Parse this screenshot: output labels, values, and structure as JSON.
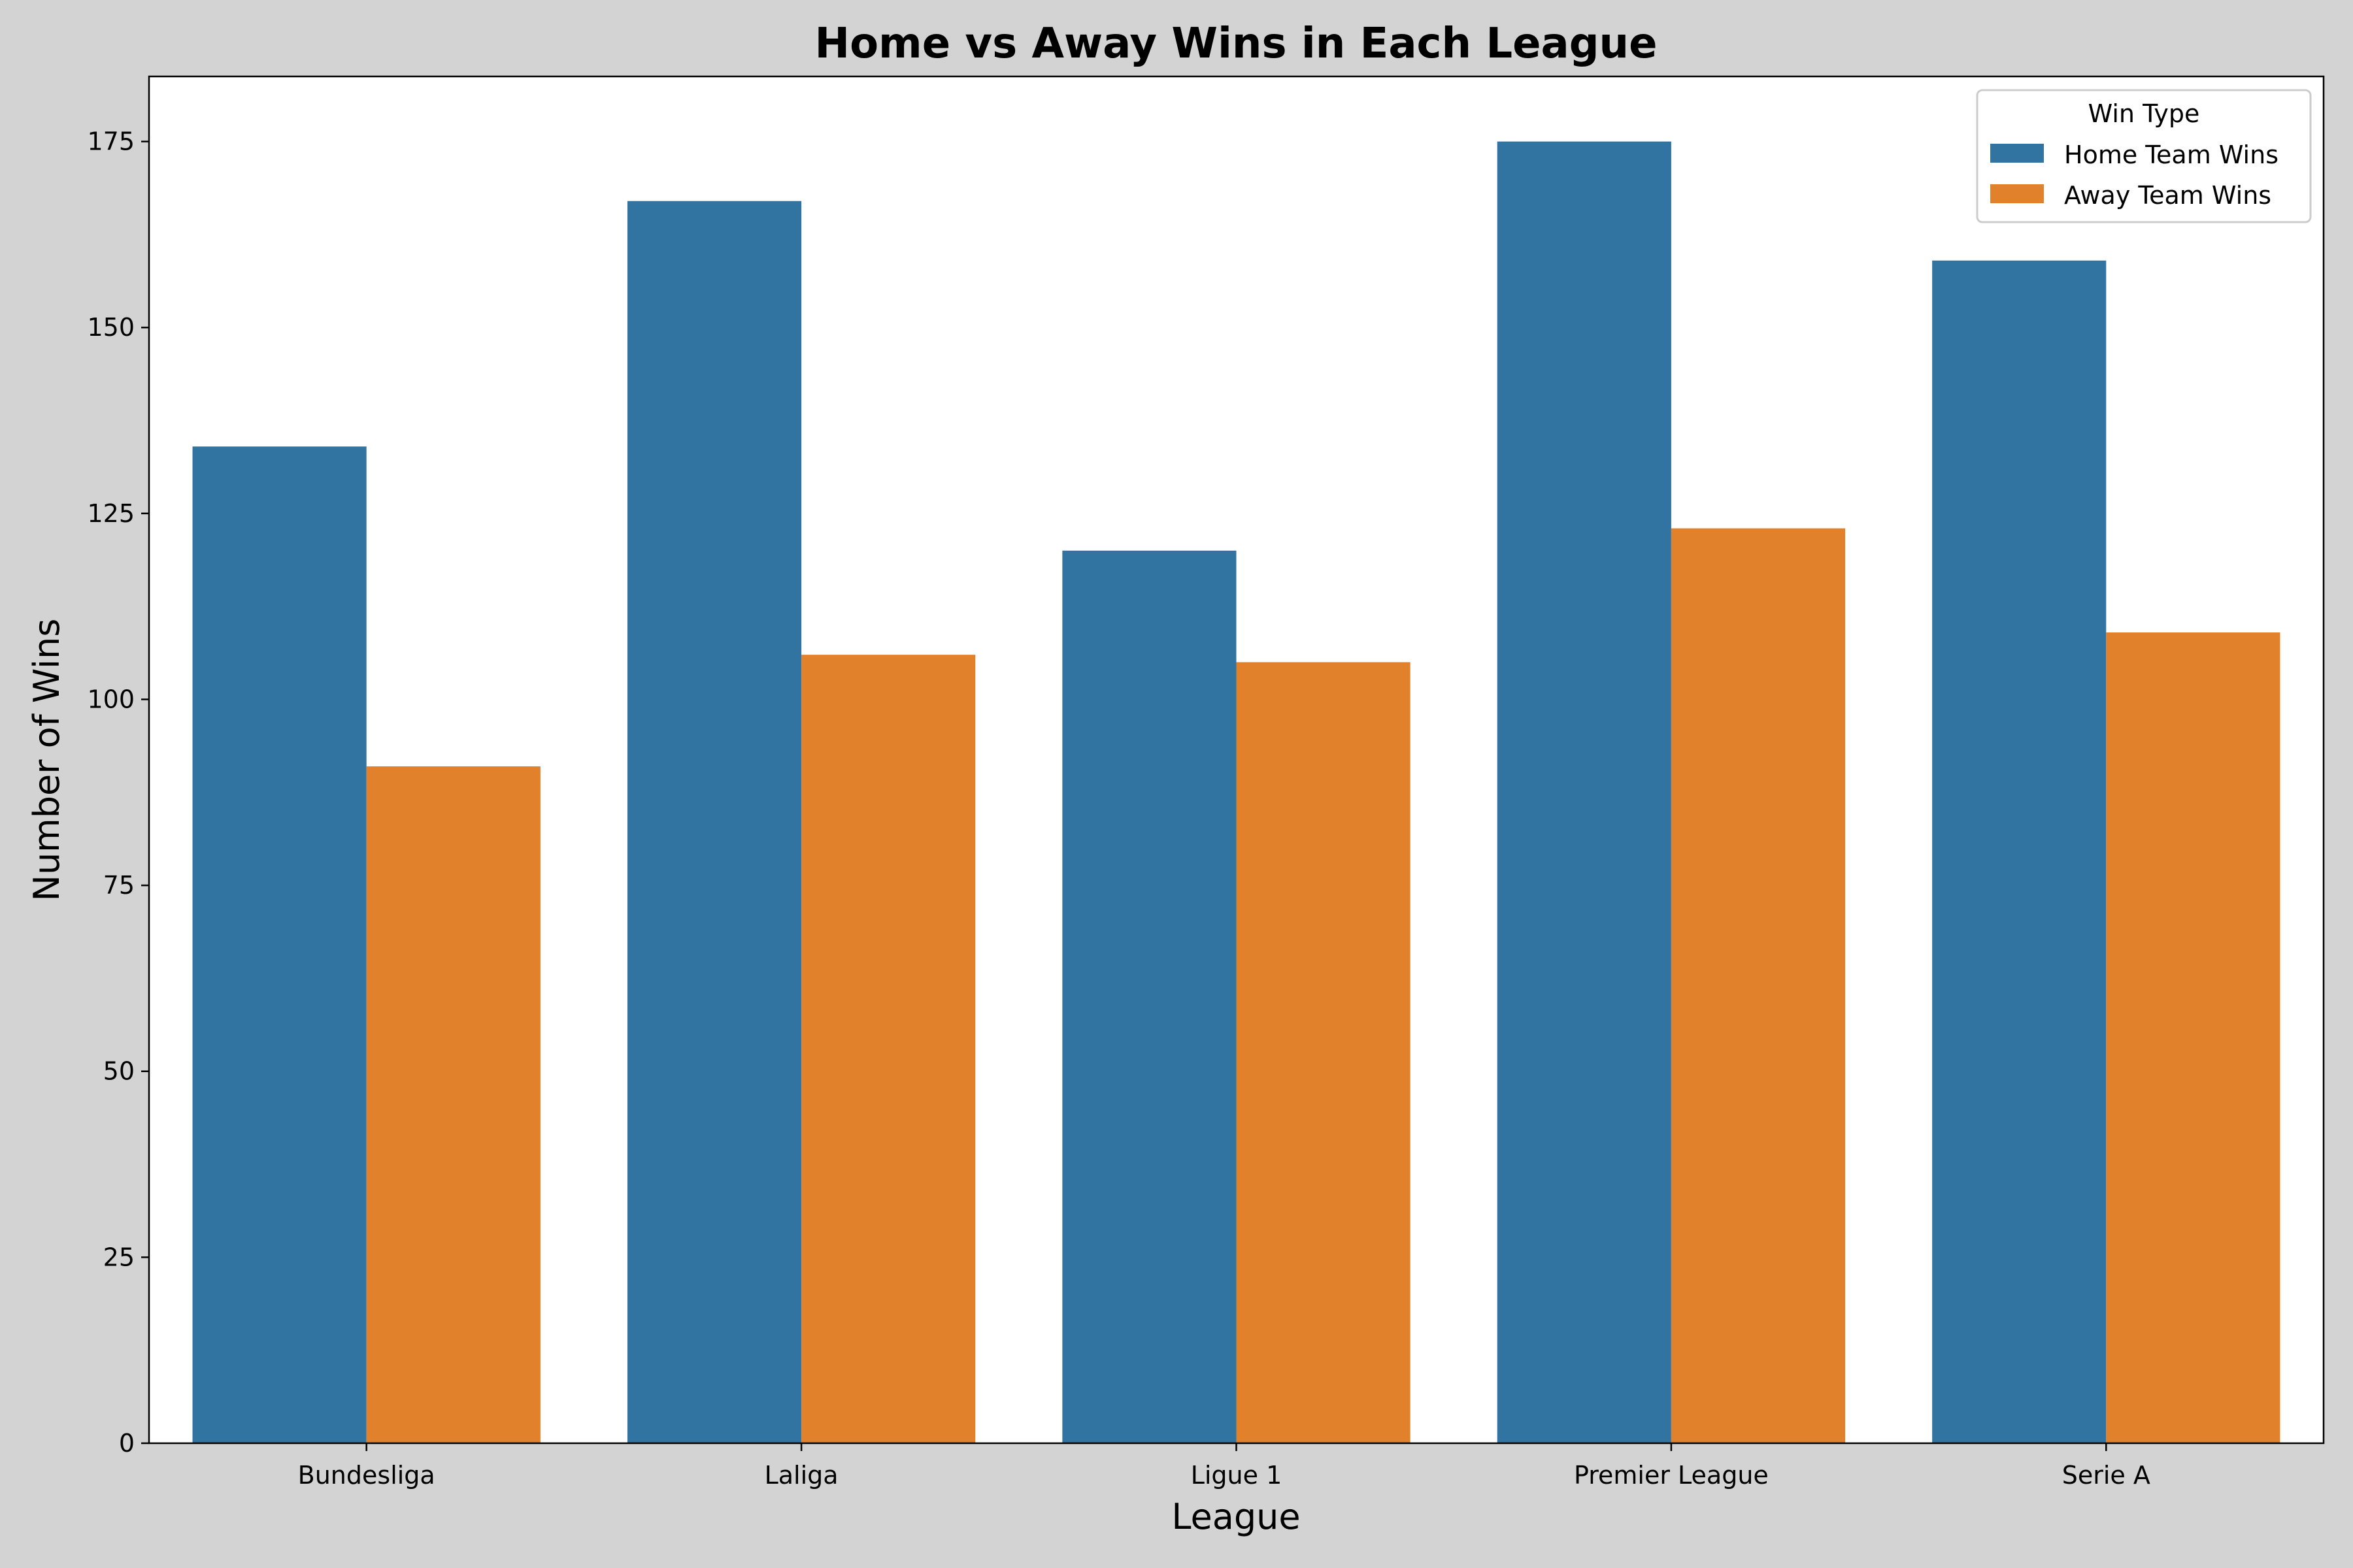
{
  "chart_data": {
    "type": "bar",
    "title": "Home vs Away Wins in Each League",
    "xlabel": "League",
    "ylabel": "Number of Wins",
    "categories": [
      "Bundesliga",
      "Laliga",
      "Ligue 1",
      "Premier League",
      "Serie A"
    ],
    "series": [
      {
        "name": "Home Team Wins",
        "color": "#3274a1",
        "values": [
          134,
          167,
          120,
          175,
          159
        ]
      },
      {
        "name": "Away Team Wins",
        "color": "#e1812c",
        "values": [
          91,
          106,
          105,
          123,
          109
        ]
      }
    ],
    "ylim": [
      0,
      183.75
    ],
    "yticks": [
      0,
      25,
      50,
      75,
      100,
      125,
      150,
      175
    ],
    "grid": false,
    "legend": {
      "title": "Win Type",
      "placement": "top-right"
    },
    "colors": {
      "figure_background": "#d3d3d3",
      "plot_background": "#ffffff"
    }
  }
}
